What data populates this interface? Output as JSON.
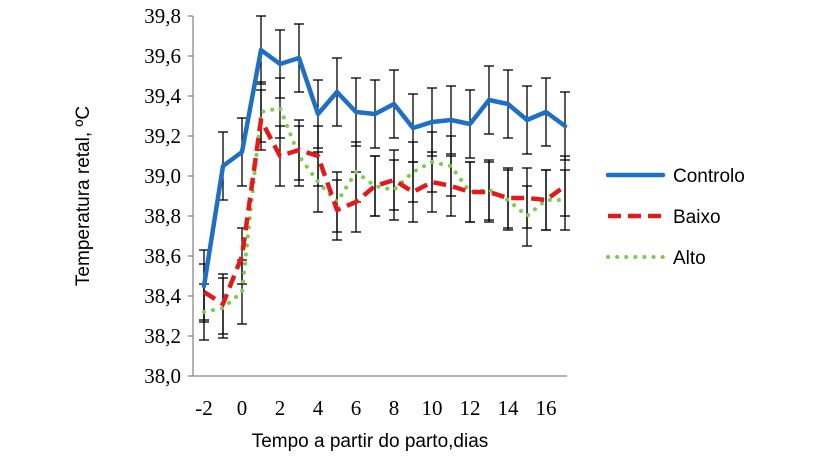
{
  "chart_data": {
    "type": "line",
    "xlabel": "Tempo a partir do parto,dias",
    "ylabel": "Temperatura retal, ºC",
    "ylim": [
      38.0,
      39.8
    ],
    "yticks": [
      "38,0",
      "38,2",
      "38,4",
      "38,6",
      "38,8",
      "39,0",
      "39,2",
      "39,4",
      "39,6",
      "39,8"
    ],
    "xticks": [
      "-2",
      "0",
      "2",
      "4",
      "6",
      "8",
      "10",
      "12",
      "14",
      "16"
    ],
    "x": [
      -2,
      -1,
      0,
      1,
      2,
      3,
      4,
      5,
      6,
      7,
      8,
      9,
      10,
      11,
      12,
      13,
      14,
      15,
      16,
      17
    ],
    "legend_position": "right",
    "grid": false,
    "error_bars": true,
    "series": [
      {
        "name": "Controlo",
        "color": "#1f6fc5",
        "style": "solid",
        "values": [
          38.45,
          39.05,
          39.12,
          39.63,
          39.56,
          39.59,
          39.31,
          39.42,
          39.32,
          39.31,
          39.36,
          39.24,
          39.27,
          39.28,
          39.26,
          39.38,
          39.36,
          39.28,
          39.32,
          39.25
        ],
        "error": [
          0.18,
          0.17,
          0.17,
          0.17,
          0.17,
          0.17,
          0.17,
          0.17,
          0.17,
          0.17,
          0.17,
          0.17,
          0.17,
          0.17,
          0.17,
          0.17,
          0.17,
          0.17,
          0.17,
          0.17
        ]
      },
      {
        "name": "Baixo",
        "color": "#e31a1c",
        "style": "dashed",
        "values": [
          38.42,
          38.36,
          38.6,
          39.28,
          39.1,
          39.13,
          39.1,
          38.83,
          38.87,
          38.95,
          38.98,
          38.92,
          38.97,
          38.95,
          38.92,
          38.92,
          38.89,
          38.89,
          38.88,
          38.95
        ],
        "error": [
          0.14,
          0.15,
          0.14,
          0.15,
          0.15,
          0.15,
          0.15,
          0.15,
          0.15,
          0.15,
          0.15,
          0.15,
          0.15,
          0.15,
          0.15,
          0.15,
          0.15,
          0.15,
          0.15,
          0.15
        ]
      },
      {
        "name": "Alto",
        "color": "#7ccc4e",
        "style": "dotted",
        "values": [
          38.32,
          38.34,
          38.42,
          39.32,
          39.34,
          39.1,
          38.97,
          38.87,
          39.02,
          38.95,
          38.93,
          39.02,
          39.07,
          39.05,
          38.92,
          38.93,
          38.88,
          38.8,
          38.88,
          38.88
        ],
        "error": [
          0.14,
          0.15,
          0.16,
          0.15,
          0.15,
          0.15,
          0.15,
          0.15,
          0.15,
          0.15,
          0.15,
          0.15,
          0.15,
          0.15,
          0.15,
          0.15,
          0.15,
          0.15,
          0.15,
          0.15
        ]
      }
    ]
  }
}
